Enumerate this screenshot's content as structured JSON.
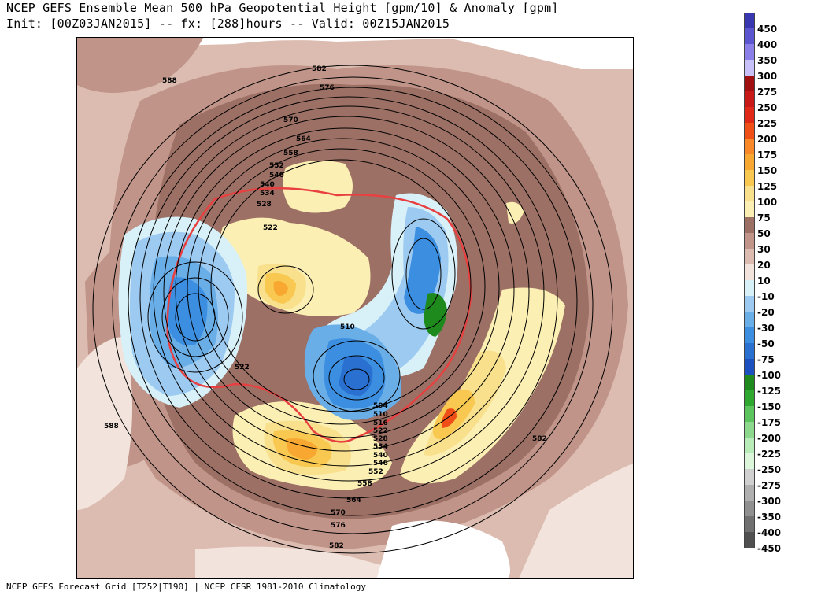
{
  "header": {
    "title_line1": "NCEP GEFS Ensemble Mean 500 hPa Geopotential Height [gpm/10] & Anomaly [gpm]",
    "title_line2": "Init: [00Z03JAN2015] -- fx: [288]hours -- Valid: 00Z15JAN2015"
  },
  "footer": {
    "text": "NCEP GEFS Forecast Grid [T252|T190] | NCEP CFSR 1981-2010 Climatology"
  },
  "map": {
    "contour_labels": [
      "588",
      "582",
      "576",
      "570",
      "564",
      "558",
      "552",
      "546",
      "540",
      "534",
      "528",
      "522",
      "522",
      "510",
      "504",
      "510",
      "516",
      "522",
      "528",
      "534",
      "540",
      "546",
      "552",
      "558",
      "564",
      "570",
      "576",
      "582",
      "588",
      "582"
    ]
  },
  "colorbar": {
    "entries": [
      {
        "label": "450",
        "color": "#3a38b0"
      },
      {
        "label": "400",
        "color": "#5b55d0"
      },
      {
        "label": "350",
        "color": "#8a7ee8"
      },
      {
        "label": "300",
        "color": "#c8c0f8"
      },
      {
        "label": "275",
        "color": "#a01010"
      },
      {
        "label": "250",
        "color": "#c81818"
      },
      {
        "label": "225",
        "color": "#e02818"
      },
      {
        "label": "200",
        "color": "#f05018"
      },
      {
        "label": "175",
        "color": "#f88828"
      },
      {
        "label": "150",
        "color": "#f8a830"
      },
      {
        "label": "125",
        "color": "#f8c850"
      },
      {
        "label": "100",
        "color": "#f8e08c"
      },
      {
        "label": "75",
        "color": "#fcefb4"
      },
      {
        "label": "50",
        "color": "#9c7064"
      },
      {
        "label": "30",
        "color": "#c09488"
      },
      {
        "label": "20",
        "color": "#dcbcb0"
      },
      {
        "label": "10",
        "color": "#f2e4dc"
      },
      {
        "label": "-10",
        "color": "#d8f0f8"
      },
      {
        "label": "-20",
        "color": "#9ccaf0"
      },
      {
        "label": "-30",
        "color": "#6aaee8"
      },
      {
        "label": "-50",
        "color": "#3c8ee0"
      },
      {
        "label": "-75",
        "color": "#2a70d0"
      },
      {
        "label": "-100",
        "color": "#1c50c0"
      },
      {
        "label": "-125",
        "color": "#1e8a1e"
      },
      {
        "label": "-150",
        "color": "#2ea82e"
      },
      {
        "label": "-175",
        "color": "#5cc45c"
      },
      {
        "label": "-200",
        "color": "#8cd88c"
      },
      {
        "label": "-225",
        "color": "#b8ecb8"
      },
      {
        "label": "-250",
        "color": "#dcf6dc"
      },
      {
        "label": "-275",
        "color": "#d0d0d0"
      },
      {
        "label": "-300",
        "color": "#b0b0b0"
      },
      {
        "label": "-350",
        "color": "#909090"
      },
      {
        "label": "-400",
        "color": "#707070"
      },
      {
        "label": "-450",
        "color": "#505050"
      }
    ]
  }
}
